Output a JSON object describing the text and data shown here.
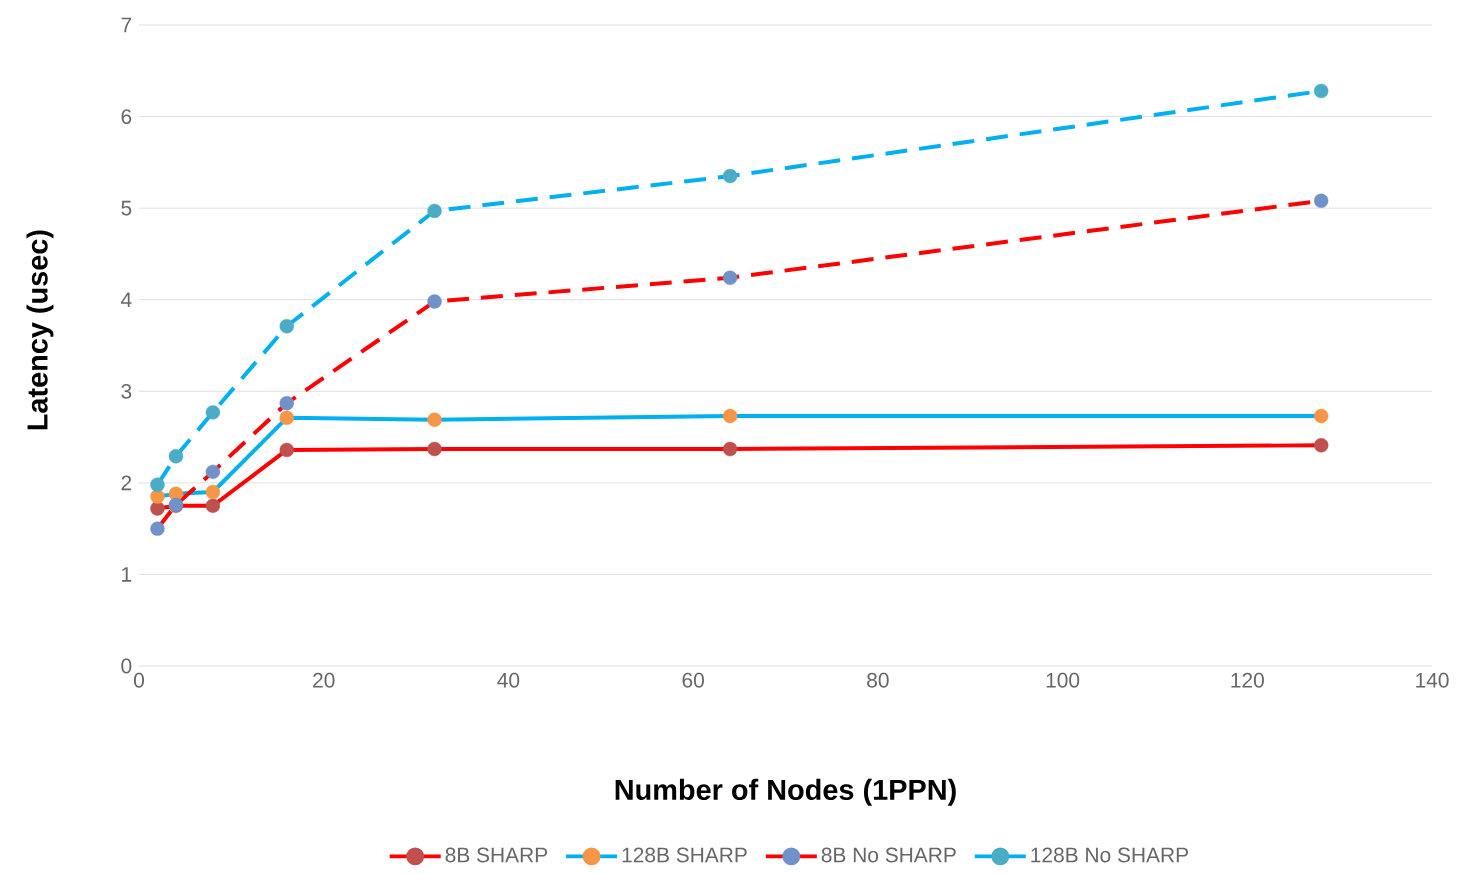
{
  "chart_data": {
    "type": "line",
    "xlabel": "Number of Nodes (1PPN)",
    "ylabel": "Latency (usec)",
    "x": [
      2,
      4,
      8,
      16,
      32,
      64,
      128
    ],
    "xlim": [
      0,
      140
    ],
    "xticks": [
      0,
      20,
      40,
      60,
      80,
      100,
      120,
      140
    ],
    "ylim": [
      0,
      7
    ],
    "yticks": [
      0,
      1,
      2,
      3,
      4,
      5,
      6,
      7
    ],
    "grid": "y",
    "legend": "bottom",
    "marker": "circle",
    "series": [
      {
        "name": "8B SHARP",
        "color": "#ff0000",
        "colors": [
          "#c0504d",
          "#c0504d",
          "#c0504d",
          "#c0504d",
          "#c0504d",
          "#c0504d",
          "#c0504d"
        ],
        "line_style": "solid",
        "values": [
          1.72,
          1.75,
          1.75,
          2.36,
          2.37,
          2.37,
          2.41
        ]
      },
      {
        "name": "128B SHARP",
        "color": "#00b0f0",
        "colors": [
          "#f79646",
          "#f79646",
          "#f79646",
          "#f79646",
          "#f79646",
          "#f79646",
          "#f79646"
        ],
        "line_style": "solid",
        "values": [
          1.85,
          1.88,
          1.9,
          2.71,
          2.69,
          2.73,
          2.73
        ]
      },
      {
        "name": "8B No SHARP",
        "color": "#ff0000",
        "colors": [
          "#7092c9",
          "#7092c9",
          "#7092c9",
          "#7092c9",
          "#7092c9",
          "#7092c9",
          "#7092c9"
        ],
        "line_style": "dashed",
        "values": [
          1.5,
          1.76,
          2.12,
          2.87,
          3.98,
          4.24,
          5.08
        ]
      },
      {
        "name": "128B No SHARP",
        "color": "#00b0f0",
        "colors": [
          "#4bacc6",
          "#4bacc6",
          "#4bacc6",
          "#4bacc6",
          "#4bacc6",
          "#4bacc6",
          "#4bacc6"
        ],
        "line_style": "dashed",
        "values": [
          1.98,
          2.29,
          2.77,
          3.71,
          4.97,
          5.35,
          6.28
        ]
      }
    ]
  }
}
